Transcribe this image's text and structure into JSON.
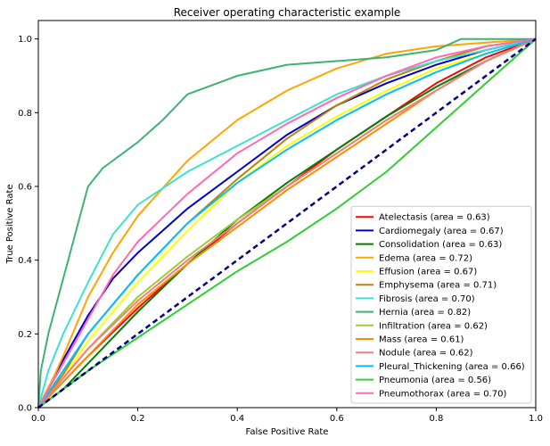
{
  "chart_data": {
    "type": "line",
    "title": "Receiver operating characteristic example",
    "xlabel": "False Positive Rate",
    "ylabel": "True Positive Rate",
    "xlim": [
      0.0,
      1.0
    ],
    "ylim": [
      0.0,
      1.05
    ],
    "x_ticks": [
      "0.0",
      "0.2",
      "0.4",
      "0.6",
      "0.8",
      "1.0"
    ],
    "y_ticks": [
      "0.0",
      "0.2",
      "0.4",
      "0.6",
      "0.8",
      "1.0"
    ],
    "grid": false,
    "legend_position": "lower-right",
    "series": [
      {
        "name": "Atelectasis (area = 0.63)",
        "color": "#ff0000",
        "points": [
          [
            0,
            0
          ],
          [
            0.05,
            0.07
          ],
          [
            0.1,
            0.14
          ],
          [
            0.2,
            0.27
          ],
          [
            0.3,
            0.39
          ],
          [
            0.4,
            0.5
          ],
          [
            0.5,
            0.6
          ],
          [
            0.6,
            0.7
          ],
          [
            0.7,
            0.79
          ],
          [
            0.8,
            0.88
          ],
          [
            0.9,
            0.95
          ],
          [
            1,
            1
          ]
        ]
      },
      {
        "name": "Cardiomegaly (area = 0.67)",
        "color": "#0000cd",
        "points": [
          [
            0,
            0
          ],
          [
            0.03,
            0.08
          ],
          [
            0.05,
            0.13
          ],
          [
            0.1,
            0.25
          ],
          [
            0.15,
            0.35
          ],
          [
            0.2,
            0.42
          ],
          [
            0.3,
            0.54
          ],
          [
            0.4,
            0.64
          ],
          [
            0.5,
            0.74
          ],
          [
            0.6,
            0.82
          ],
          [
            0.7,
            0.88
          ],
          [
            0.8,
            0.93
          ],
          [
            0.9,
            0.97
          ],
          [
            1,
            1
          ]
        ]
      },
      {
        "name": "Consolidation (area = 0.63)",
        "color": "#008000",
        "points": [
          [
            0,
            0
          ],
          [
            0.05,
            0.05
          ],
          [
            0.1,
            0.12
          ],
          [
            0.2,
            0.26
          ],
          [
            0.3,
            0.39
          ],
          [
            0.4,
            0.51
          ],
          [
            0.5,
            0.61
          ],
          [
            0.6,
            0.7
          ],
          [
            0.7,
            0.79
          ],
          [
            0.8,
            0.87
          ],
          [
            0.9,
            0.94
          ],
          [
            1,
            1
          ]
        ]
      },
      {
        "name": "Edema (area = 0.72)",
        "color": "#ffa500",
        "points": [
          [
            0,
            0
          ],
          [
            0.03,
            0.08
          ],
          [
            0.05,
            0.14
          ],
          [
            0.1,
            0.3
          ],
          [
            0.15,
            0.42
          ],
          [
            0.2,
            0.52
          ],
          [
            0.3,
            0.67
          ],
          [
            0.4,
            0.78
          ],
          [
            0.5,
            0.86
          ],
          [
            0.6,
            0.92
          ],
          [
            0.7,
            0.96
          ],
          [
            0.8,
            0.98
          ],
          [
            0.9,
            0.99
          ],
          [
            1,
            1
          ]
        ]
      },
      {
        "name": "Effusion (area = 0.67)",
        "color": "#ffff00",
        "points": [
          [
            0,
            0
          ],
          [
            0.05,
            0.08
          ],
          [
            0.1,
            0.18
          ],
          [
            0.2,
            0.34
          ],
          [
            0.3,
            0.48
          ],
          [
            0.4,
            0.61
          ],
          [
            0.5,
            0.71
          ],
          [
            0.6,
            0.79
          ],
          [
            0.7,
            0.86
          ],
          [
            0.8,
            0.92
          ],
          [
            0.9,
            0.96
          ],
          [
            1,
            1
          ]
        ]
      },
      {
        "name": "Emphysema (area = 0.71)",
        "color": "#b8860b",
        "points": [
          [
            0,
            0
          ],
          [
            0.05,
            0.09
          ],
          [
            0.1,
            0.2
          ],
          [
            0.2,
            0.36
          ],
          [
            0.3,
            0.5
          ],
          [
            0.4,
            0.62
          ],
          [
            0.5,
            0.73
          ],
          [
            0.6,
            0.82
          ],
          [
            0.7,
            0.89
          ],
          [
            0.8,
            0.94
          ],
          [
            0.9,
            0.98
          ],
          [
            1,
            1
          ]
        ]
      },
      {
        "name": "Fibrosis (area = 0.70)",
        "color": "#40e0d0",
        "points": [
          [
            0,
            0
          ],
          [
            0.02,
            0.1
          ],
          [
            0.05,
            0.2
          ],
          [
            0.1,
            0.34
          ],
          [
            0.15,
            0.47
          ],
          [
            0.2,
            0.55
          ],
          [
            0.3,
            0.64
          ],
          [
            0.4,
            0.71
          ],
          [
            0.5,
            0.78
          ],
          [
            0.6,
            0.85
          ],
          [
            0.7,
            0.9
          ],
          [
            0.8,
            0.94
          ],
          [
            0.9,
            0.97
          ],
          [
            1,
            1
          ]
        ]
      },
      {
        "name": "Hernia (area = 0.82)",
        "color": "#3cb371",
        "points": [
          [
            0,
            0
          ],
          [
            0.005,
            0.1
          ],
          [
            0.02,
            0.2
          ],
          [
            0.04,
            0.3
          ],
          [
            0.06,
            0.4
          ],
          [
            0.08,
            0.5
          ],
          [
            0.1,
            0.6
          ],
          [
            0.13,
            0.65
          ],
          [
            0.2,
            0.72
          ],
          [
            0.25,
            0.78
          ],
          [
            0.3,
            0.85
          ],
          [
            0.4,
            0.9
          ],
          [
            0.5,
            0.93
          ],
          [
            0.7,
            0.95
          ],
          [
            0.8,
            0.97
          ],
          [
            0.85,
            1
          ],
          [
            1,
            1
          ]
        ]
      },
      {
        "name": "Infiltration (area = 0.62)",
        "color": "#9acd32",
        "points": [
          [
            0,
            0
          ],
          [
            0.05,
            0.08
          ],
          [
            0.1,
            0.16
          ],
          [
            0.2,
            0.3
          ],
          [
            0.3,
            0.41
          ],
          [
            0.4,
            0.51
          ],
          [
            0.5,
            0.6
          ],
          [
            0.6,
            0.69
          ],
          [
            0.7,
            0.78
          ],
          [
            0.8,
            0.86
          ],
          [
            0.9,
            0.94
          ],
          [
            1,
            1
          ]
        ]
      },
      {
        "name": "Mass (area = 0.61)",
        "color": "#ff8c00",
        "points": [
          [
            0,
            0
          ],
          [
            0.05,
            0.07
          ],
          [
            0.1,
            0.14
          ],
          [
            0.2,
            0.28
          ],
          [
            0.3,
            0.39
          ],
          [
            0.4,
            0.49
          ],
          [
            0.5,
            0.59
          ],
          [
            0.6,
            0.68
          ],
          [
            0.7,
            0.77
          ],
          [
            0.8,
            0.86
          ],
          [
            0.9,
            0.94
          ],
          [
            1,
            1
          ]
        ]
      },
      {
        "name": "Nodule (area = 0.62)",
        "color": "#f08080",
        "points": [
          [
            0,
            0
          ],
          [
            0.05,
            0.08
          ],
          [
            0.1,
            0.16
          ],
          [
            0.2,
            0.29
          ],
          [
            0.3,
            0.4
          ],
          [
            0.4,
            0.5
          ],
          [
            0.5,
            0.6
          ],
          [
            0.6,
            0.69
          ],
          [
            0.7,
            0.78
          ],
          [
            0.8,
            0.86
          ],
          [
            0.9,
            0.94
          ],
          [
            1,
            1
          ]
        ]
      },
      {
        "name": "Pleural_Thickening (area = 0.66)",
        "color": "#00bfff",
        "points": [
          [
            0,
            0
          ],
          [
            0.05,
            0.1
          ],
          [
            0.1,
            0.2
          ],
          [
            0.2,
            0.36
          ],
          [
            0.3,
            0.5
          ],
          [
            0.4,
            0.61
          ],
          [
            0.5,
            0.7
          ],
          [
            0.6,
            0.78
          ],
          [
            0.7,
            0.85
          ],
          [
            0.8,
            0.91
          ],
          [
            0.9,
            0.96
          ],
          [
            1,
            1
          ]
        ]
      },
      {
        "name": "Pneumonia (area = 0.56)",
        "color": "#32cd32",
        "points": [
          [
            0,
            0
          ],
          [
            0.05,
            0.05
          ],
          [
            0.1,
            0.1
          ],
          [
            0.2,
            0.19
          ],
          [
            0.3,
            0.28
          ],
          [
            0.4,
            0.37
          ],
          [
            0.5,
            0.45
          ],
          [
            0.6,
            0.54
          ],
          [
            0.7,
            0.64
          ],
          [
            0.8,
            0.76
          ],
          [
            0.9,
            0.88
          ],
          [
            1,
            1
          ]
        ]
      },
      {
        "name": "Pneumothorax (area = 0.70)",
        "color": "#ff69b4",
        "points": [
          [
            0,
            0
          ],
          [
            0.05,
            0.12
          ],
          [
            0.1,
            0.24
          ],
          [
            0.15,
            0.36
          ],
          [
            0.2,
            0.45
          ],
          [
            0.3,
            0.58
          ],
          [
            0.4,
            0.69
          ],
          [
            0.5,
            0.77
          ],
          [
            0.6,
            0.84
          ],
          [
            0.7,
            0.9
          ],
          [
            0.8,
            0.95
          ],
          [
            0.9,
            0.98
          ],
          [
            1,
            1
          ]
        ]
      }
    ],
    "reference_line": {
      "color": "#000080",
      "style": "dashed",
      "points": [
        [
          0,
          0
        ],
        [
          1,
          1
        ]
      ]
    }
  }
}
